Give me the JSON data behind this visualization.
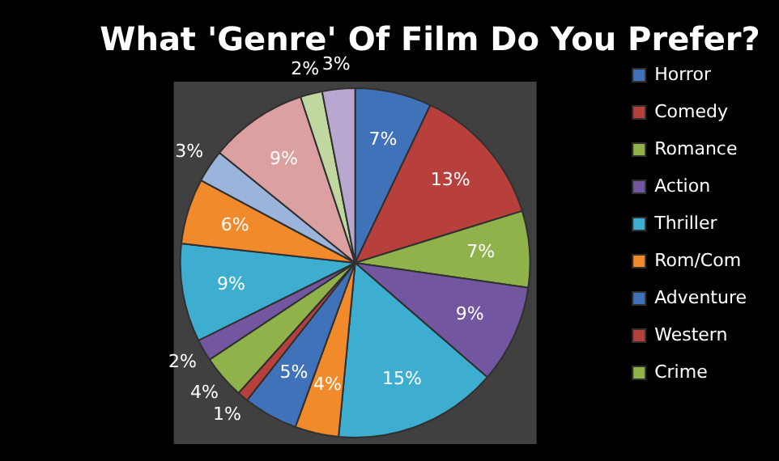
{
  "chart_data": {
    "type": "pie",
    "title": "What 'Genre' Of Film Do You Prefer?",
    "categories": [
      "Horror",
      "Comedy",
      "Romance",
      "Action",
      "Thriller",
      "Rom/Com",
      "Adventure",
      "Western",
      "Crime",
      null,
      null,
      null,
      null,
      null,
      null,
      null
    ],
    "values": [
      7,
      13,
      7,
      9,
      15,
      4,
      5,
      1,
      4,
      2,
      9,
      6,
      3,
      9,
      2,
      3
    ],
    "value_labels": [
      "7%",
      "13%",
      "7%",
      "9%",
      "15%",
      "4%",
      "5%",
      "1%",
      "4%",
      "2%",
      "9%",
      "6%",
      "3%",
      "9%",
      "2%",
      "3%"
    ],
    "colors": [
      "#3f72b8",
      "#b8403c",
      "#8fb24a",
      "#7356a0",
      "#3eaed0",
      "#f08a2a",
      "#3f72b8",
      "#b8403c",
      "#8fb24a",
      "#7356a0",
      "#3eaed0",
      "#f08a2a",
      "#9ab4dc",
      "#dca0a0",
      "#c0d8a0",
      "#b8a8d0"
    ],
    "legend": "right"
  }
}
